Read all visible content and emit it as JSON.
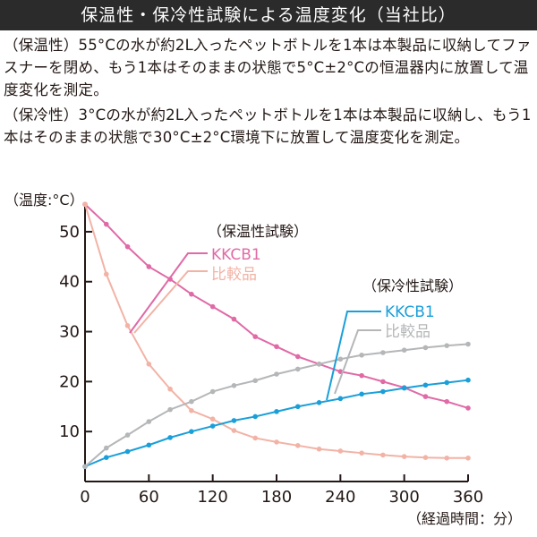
{
  "header": {
    "title": "保温性・保冷性試験による温度変化（当社比）"
  },
  "descriptions": {
    "heat_test": "（保温性）55°Cの水が約2L入ったペットボトルを1本は本製品に収納してファスナーを閉め、もう1本はそのままの状態で5°C±2°Cの恒温器内に放置して温度変化を測定。",
    "cold_test": "（保冷性）3°Cの水が約2L入ったペットボトルを1本は本製品に収納し、もう1本はそのままの状態で30°C±2°C環境下に放置して温度変化を測定。"
  },
  "colors": {
    "kkcb1_heat": "#e06aa6",
    "compare_heat": "#f2b3a6",
    "kkcb1_cold": "#1a9fd9",
    "compare_cold": "#b4b6b8",
    "axis": "#231815"
  },
  "chart_data": {
    "type": "line",
    "ylabel": "（温度:°C）",
    "xlabel": "（経過時間：分）",
    "xlim": [
      0,
      360
    ],
    "ylim": [
      0,
      55
    ],
    "xticks": [
      0,
      60,
      120,
      180,
      240,
      300,
      360
    ],
    "yticks": [
      10,
      20,
      30,
      40,
      50
    ],
    "grid": false,
    "x": [
      0,
      20,
      40,
      60,
      80,
      100,
      120,
      140,
      160,
      180,
      200,
      220,
      240,
      260,
      280,
      300,
      320,
      340,
      360
    ],
    "groups": [
      {
        "name": "（保温性試験）",
        "series": [
          "KKCB1",
          "比較品"
        ]
      },
      {
        "name": "（保冷性試験）",
        "series": [
          "KKCB1",
          "比較品"
        ]
      }
    ],
    "series": [
      {
        "name": "KKCB1",
        "test": "（保温性試験）",
        "color": "#e06aa6",
        "values": [
          55.5,
          51.5,
          47,
          43,
          40.5,
          37.5,
          35,
          32.5,
          29,
          27,
          25,
          23.5,
          22,
          21.2,
          20,
          18.8,
          17,
          16,
          14.7
        ]
      },
      {
        "name": "比較品",
        "test": "（保温性試験）",
        "color": "#f2b3a6",
        "values": [
          55.5,
          41.5,
          31.2,
          23.5,
          18.5,
          14.2,
          12.5,
          10.2,
          8.7,
          7.9,
          7.2,
          6.5,
          6.1,
          5.7,
          5.3,
          5.0,
          4.8,
          4.7,
          4.7
        ]
      },
      {
        "name": "KKCB1",
        "test": "（保冷性試験）",
        "color": "#1a9fd9",
        "values": [
          3.0,
          4.8,
          6.0,
          7.3,
          8.8,
          10.0,
          11.1,
          12.2,
          13.0,
          14.0,
          15.0,
          15.8,
          16.6,
          17.5,
          18.0,
          18.7,
          19.3,
          19.8,
          20.3
        ]
      },
      {
        "name": "比較品",
        "test": "（保冷性試験）",
        "color": "#b4b6b8",
        "values": [
          3.0,
          6.7,
          9.3,
          12.0,
          14.4,
          16.0,
          18.0,
          19.2,
          20.2,
          21.5,
          22.5,
          23.5,
          24.5,
          25.3,
          25.8,
          26.3,
          26.8,
          27.2,
          27.5
        ]
      }
    ]
  }
}
